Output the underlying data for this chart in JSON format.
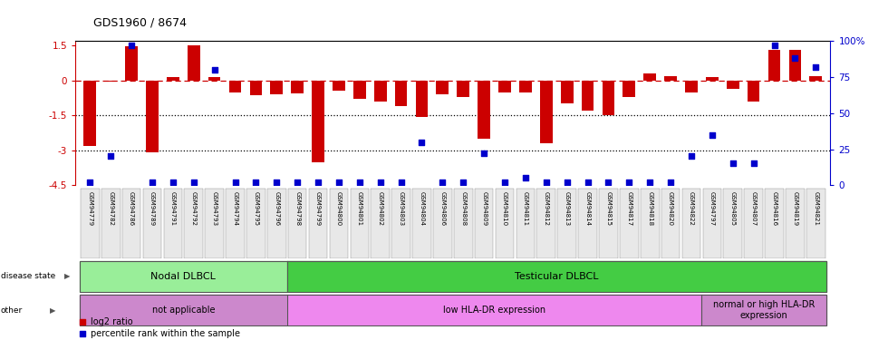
{
  "title": "GDS1960 / 8674",
  "samples": [
    "GSM94779",
    "GSM94782",
    "GSM94786",
    "GSM94789",
    "GSM94791",
    "GSM94792",
    "GSM94793",
    "GSM94794",
    "GSM94795",
    "GSM94796",
    "GSM94798",
    "GSM94799",
    "GSM94800",
    "GSM94801",
    "GSM94802",
    "GSM94803",
    "GSM94804",
    "GSM94806",
    "GSM94808",
    "GSM94809",
    "GSM94810",
    "GSM94811",
    "GSM94812",
    "GSM94813",
    "GSM94814",
    "GSM94815",
    "GSM94817",
    "GSM94818",
    "GSM94820",
    "GSM94822",
    "GSM94797",
    "GSM94805",
    "GSM94807",
    "GSM94816",
    "GSM94819",
    "GSM94821"
  ],
  "log2_ratio": [
    -2.8,
    -0.05,
    1.45,
    -3.1,
    0.15,
    1.5,
    0.15,
    -0.5,
    -0.65,
    -0.6,
    -0.55,
    -3.5,
    -0.45,
    -0.8,
    -0.9,
    -1.1,
    -1.55,
    -0.6,
    -0.7,
    -2.5,
    -0.5,
    -0.5,
    -2.7,
    -1.0,
    -1.3,
    -1.5,
    -0.7,
    0.3,
    0.2,
    -0.5,
    0.15,
    -0.35,
    -0.9,
    1.3,
    1.3,
    0.2
  ],
  "percentile_rank": [
    2,
    20,
    97,
    2,
    2,
    2,
    80,
    2,
    2,
    2,
    2,
    2,
    2,
    2,
    2,
    2,
    30,
    2,
    2,
    22,
    2,
    5,
    2,
    2,
    2,
    2,
    2,
    2,
    2,
    20,
    35,
    15,
    15,
    97,
    88,
    82
  ],
  "bar_color": "#CC0000",
  "dot_color": "#0000CC",
  "red_line_color": "#CC0000",
  "ylim_left": [
    -4.5,
    1.7
  ],
  "ylim_right": [
    0,
    100
  ],
  "yticks_left": [
    1.5,
    0.0,
    -1.5,
    -3.0,
    -4.5
  ],
  "ytick_labels_left": [
    "1.5",
    "0",
    "-1.5",
    "-3",
    "-4.5"
  ],
  "yticks_right": [
    0,
    25,
    50,
    75,
    100
  ],
  "ytick_labels_right": [
    "0",
    "25",
    "50",
    "75",
    "100%"
  ],
  "hline_dashed": 0.0,
  "hlines_dotted": [
    -1.5,
    -3.0
  ],
  "disease_state_groups": [
    {
      "label": "Nodal DLBCL",
      "start": 0,
      "end": 10,
      "color": "#99EE99"
    },
    {
      "label": "Testicular DLBCL",
      "start": 10,
      "end": 36,
      "color": "#44CC44"
    }
  ],
  "other_groups": [
    {
      "label": "not applicable",
      "start": 0,
      "end": 10,
      "color": "#CC88CC"
    },
    {
      "label": "low HLA-DR expression",
      "start": 10,
      "end": 30,
      "color": "#EE88EE"
    },
    {
      "label": "normal or high HLA-DR\nexpression",
      "start": 30,
      "end": 36,
      "color": "#CC88CC"
    }
  ]
}
